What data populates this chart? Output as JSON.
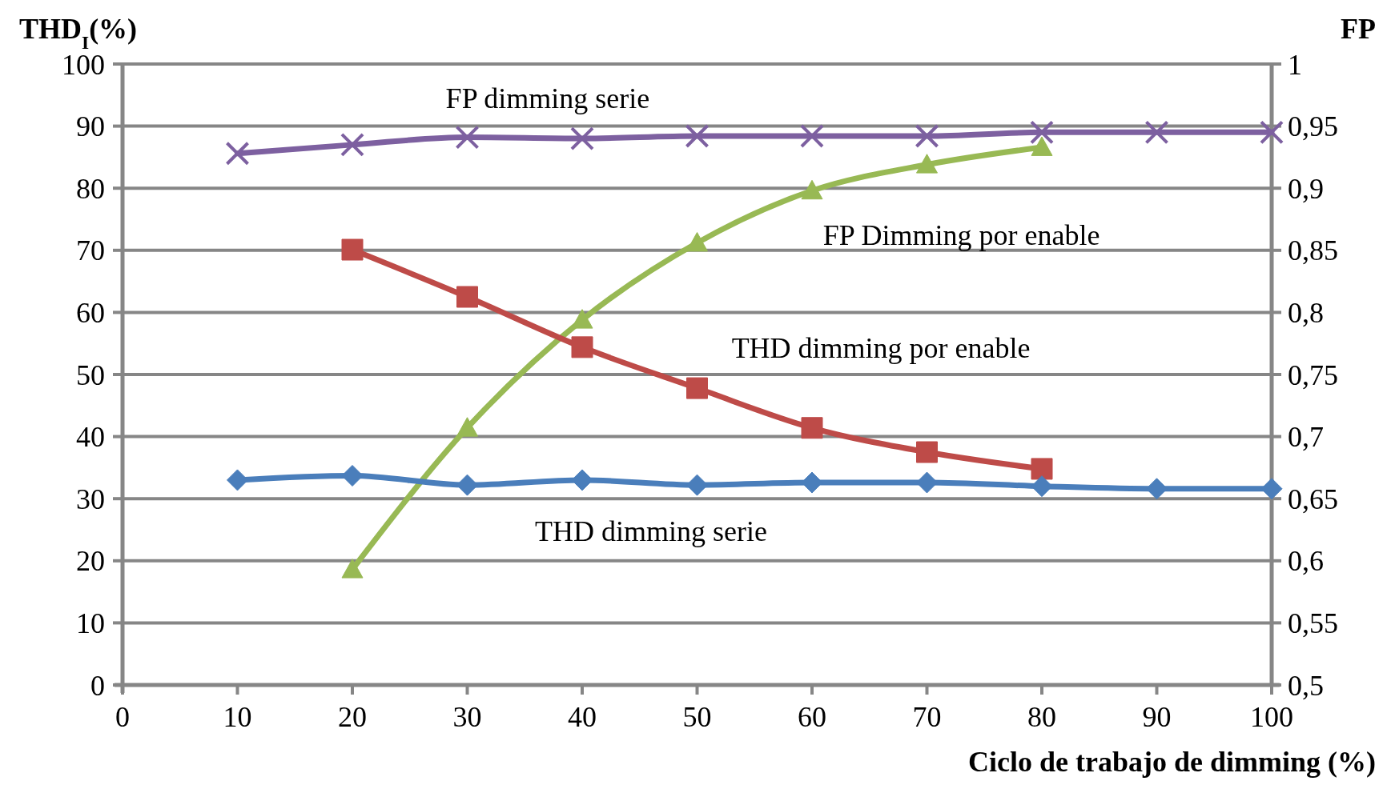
{
  "chart_data": {
    "type": "line",
    "ylabel": "THD$_{I}$(%)",
    "y2label": "FP",
    "xlabel": "Ciclo de trabajo de dimming (%)",
    "x": [
      10,
      20,
      30,
      40,
      50,
      60,
      70,
      80,
      90,
      100
    ],
    "xlim": [
      0,
      100
    ],
    "xticks": [
      0,
      10,
      20,
      30,
      40,
      50,
      60,
      70,
      80,
      90,
      100
    ],
    "ylim": [
      0,
      100
    ],
    "yticks": [
      0,
      10,
      20,
      30,
      40,
      50,
      60,
      70,
      80,
      90,
      100
    ],
    "y2lim": [
      0.5,
      1
    ],
    "y2ticks": [
      {
        "value": 0.5,
        "label": "0,5"
      },
      {
        "value": 0.55,
        "label": "0,55"
      },
      {
        "value": 0.6,
        "label": "0,6"
      },
      {
        "value": 0.65,
        "label": "0,65"
      },
      {
        "value": 0.7,
        "label": "0,7"
      },
      {
        "value": 0.75,
        "label": "0,75"
      },
      {
        "value": 0.8,
        "label": "0,8"
      },
      {
        "value": 0.85,
        "label": "0,85"
      },
      {
        "value": 0.9,
        "label": "0,9"
      },
      {
        "value": 0.95,
        "label": "0,95"
      },
      {
        "value": 1,
        "label": "1"
      }
    ],
    "grid": "y",
    "series": [
      {
        "name": "FP dimming serie",
        "color": "#7d60a0",
        "axis": "y2",
        "marker": "cross",
        "values": [
          0.928,
          0.935,
          0.941,
          0.94,
          0.942,
          0.942,
          0.942,
          0.945,
          0.945,
          0.945
        ]
      },
      {
        "name": "FP Dimming por enable",
        "color": "#98b954",
        "axis": "y2",
        "marker": "triangle",
        "values": [
          null,
          0.593,
          0.707,
          0.794,
          0.856,
          0.898,
          0.919,
          0.933,
          null,
          null
        ]
      },
      {
        "name": "THD dimming por enable",
        "color": "#be4b48",
        "marker": "square",
        "values": [
          null,
          70.1,
          62.5,
          54.4,
          47.8,
          41.4,
          37.5,
          34.8,
          null,
          null
        ]
      },
      {
        "name": "THD dimming serie",
        "color": "#4a7ebb",
        "marker": "diamond",
        "values": [
          33,
          33.7,
          32.2,
          33,
          32.2,
          32.6,
          32.6,
          32,
          31.6,
          31.6
        ]
      }
    ]
  }
}
